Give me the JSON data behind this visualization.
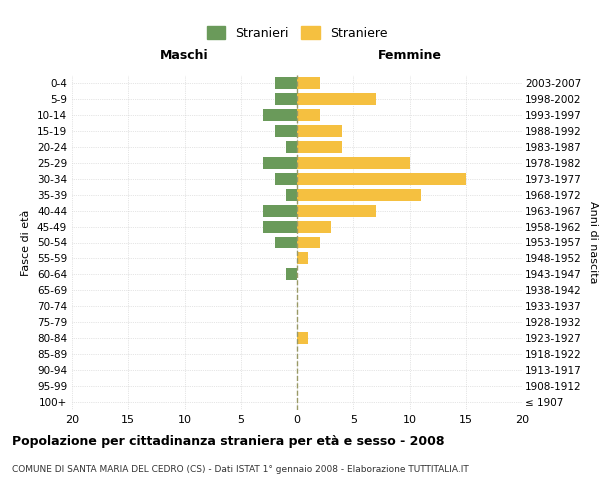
{
  "age_groups": [
    "100+",
    "95-99",
    "90-94",
    "85-89",
    "80-84",
    "75-79",
    "70-74",
    "65-69",
    "60-64",
    "55-59",
    "50-54",
    "45-49",
    "40-44",
    "35-39",
    "30-34",
    "25-29",
    "20-24",
    "15-19",
    "10-14",
    "5-9",
    "0-4"
  ],
  "birth_years": [
    "≤ 1907",
    "1908-1912",
    "1913-1917",
    "1918-1922",
    "1923-1927",
    "1928-1932",
    "1933-1937",
    "1938-1942",
    "1943-1947",
    "1948-1952",
    "1953-1957",
    "1958-1962",
    "1963-1967",
    "1968-1972",
    "1973-1977",
    "1978-1982",
    "1983-1987",
    "1988-1992",
    "1993-1997",
    "1998-2002",
    "2003-2007"
  ],
  "maschi": [
    0,
    0,
    0,
    0,
    0,
    0,
    0,
    0,
    1,
    0,
    2,
    3,
    3,
    1,
    2,
    3,
    1,
    2,
    3,
    2,
    2
  ],
  "femmine": [
    0,
    0,
    0,
    0,
    1,
    0,
    0,
    0,
    0,
    1,
    2,
    3,
    7,
    11,
    15,
    10,
    4,
    4,
    2,
    7,
    2
  ],
  "male_color": "#6a9a5a",
  "female_color": "#f5c040",
  "background_color": "#ffffff",
  "grid_color": "#cccccc",
  "center_line_color": "#999966",
  "xlim": 20,
  "title": "Popolazione per cittadinanza straniera per età e sesso - 2008",
  "subtitle": "COMUNE DI SANTA MARIA DEL CEDRO (CS) - Dati ISTAT 1° gennaio 2008 - Elaborazione TUTTITALIA.IT",
  "ylabel_left": "Fasce di età",
  "ylabel_right": "Anni di nascita",
  "header_left": "Maschi",
  "header_right": "Femmine",
  "legend_male": "Stranieri",
  "legend_female": "Straniere"
}
